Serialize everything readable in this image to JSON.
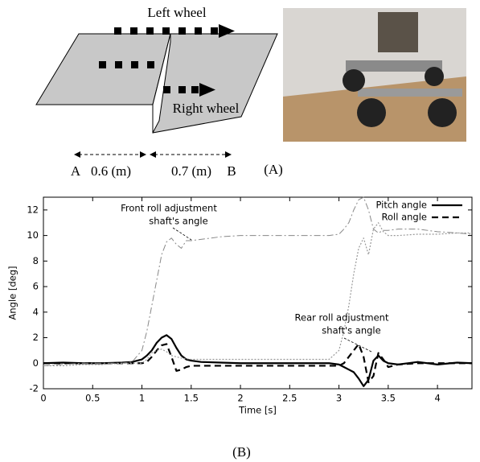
{
  "diagram": {
    "left_label": "Left wheel",
    "right_label": "Right wheel",
    "point_a": "A",
    "dist_a": "0.6 (m)",
    "dist_b": "0.7 (m)",
    "point_b": "B",
    "caption": "(A)"
  },
  "chart_data": {
    "type": "line",
    "caption": "(B)",
    "xlabel": "Time [s]",
    "ylabel": "Angle [deg]",
    "x": [
      0,
      0.2,
      0.4,
      0.6,
      0.8,
      0.9,
      1.0,
      1.05,
      1.1,
      1.15,
      1.2,
      1.25,
      1.3,
      1.35,
      1.4,
      1.45,
      1.5,
      1.6,
      1.8,
      2.0,
      2.5,
      2.9,
      3.0,
      3.05,
      3.1,
      3.15,
      3.2,
      3.25,
      3.3,
      3.35,
      3.4,
      3.45,
      3.5,
      3.6,
      3.8,
      4.0,
      4.2,
      4.35
    ],
    "series": [
      {
        "name": "Pitch angle",
        "color": "#000000",
        "style": "solid",
        "values": [
          0,
          0.05,
          0,
          0,
          0.05,
          0.1,
          0.3,
          0.6,
          1.0,
          1.6,
          2.0,
          2.2,
          1.9,
          1.2,
          0.6,
          0.3,
          0.2,
          0.1,
          0.05,
          0,
          0,
          0,
          -0.1,
          -0.3,
          -0.5,
          -0.7,
          -1.2,
          -1.8,
          -1.3,
          0.2,
          0.6,
          0.2,
          0,
          -0.1,
          0.1,
          -0.1,
          0.05,
          0
        ]
      },
      {
        "name": "Roll angle",
        "color": "#000000",
        "style": "dashed",
        "values": [
          0,
          0,
          0,
          0,
          0,
          0,
          0,
          0.1,
          0.5,
          1.0,
          1.4,
          1.5,
          0.5,
          -0.6,
          -0.5,
          -0.3,
          -0.2,
          -0.2,
          -0.2,
          -0.2,
          -0.2,
          -0.2,
          -0.2,
          0,
          0.5,
          1.0,
          1.5,
          0.5,
          -1.5,
          -1.0,
          0.8,
          0.3,
          -0.3,
          -0.1,
          0,
          0,
          0,
          0
        ]
      },
      {
        "color": "#888888",
        "style": "dashdot",
        "values": [
          -0.2,
          -0.1,
          0,
          0,
          0,
          0.1,
          1.0,
          2.5,
          4.5,
          6.5,
          8.5,
          9.5,
          9.8,
          9.3,
          9.0,
          9.6,
          9.6,
          9.7,
          9.9,
          10,
          10,
          10,
          10.1,
          10.5,
          11,
          12,
          12.8,
          13,
          12,
          10.5,
          10.2,
          10.4,
          10.4,
          10.5,
          10.5,
          10.3,
          10.2,
          10.1
        ]
      },
      {
        "color": "#999999",
        "style": "dotted",
        "values": [
          -0.2,
          -0.2,
          -0.1,
          -0.1,
          0,
          0,
          0,
          0.3,
          0.8,
          1.0,
          1.1,
          0.9,
          0.6,
          0.5,
          0.4,
          0.35,
          0.3,
          0.3,
          0.3,
          0.3,
          0.3,
          0.3,
          1.0,
          2.5,
          4.5,
          7.0,
          9.0,
          9.8,
          8.5,
          10.5,
          11.0,
          10.3,
          10.0,
          10.0,
          10.1,
          10.1,
          10.2,
          10.2
        ]
      }
    ],
    "annotations": [
      {
        "lines": [
          "Front roll adjustment",
          "shaft's angle"
        ]
      },
      {
        "lines": [
          "Rear roll adjustment",
          "shaft's angle"
        ]
      }
    ],
    "xlim": [
      0,
      4.35
    ],
    "ylim": [
      -2,
      13
    ],
    "xticks": [
      0,
      0.5,
      1,
      1.5,
      2,
      2.5,
      3,
      3.5,
      4
    ],
    "yticks": [
      -2,
      0,
      2,
      4,
      6,
      8,
      10,
      12
    ],
    "legend": "upper right"
  }
}
